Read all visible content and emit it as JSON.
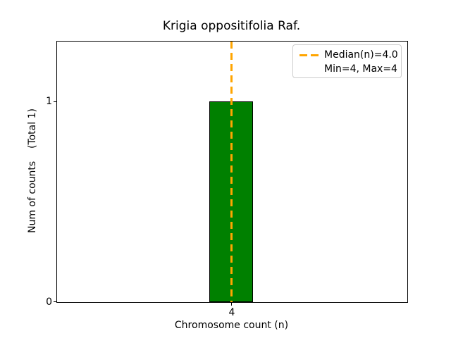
{
  "chart_data": {
    "type": "bar",
    "title": "Krigia oppositifolia Raf.",
    "xlabel": "Chromosome count (n)",
    "ylabel": "Num of counts    (Total 1)",
    "categories": [
      "4"
    ],
    "x": [
      4
    ],
    "values": [
      1
    ],
    "total_counts": 1,
    "ylim": [
      0,
      1.3
    ],
    "ytick_labels": [
      "0",
      "1"
    ],
    "xtick_labels": [
      "4"
    ],
    "grid": "off",
    "bar_color": "#008000",
    "bar_edge_color": "#000000",
    "median_line": {
      "value": 4.0,
      "color": "#FFA500",
      "style": "dashed",
      "orientation": "vertical"
    },
    "legend": {
      "position": "upper right",
      "entries": [
        {
          "label": "Median(n)=4.0",
          "handle": "orange-dashed-line"
        },
        {
          "label": "Min=4, Max=4",
          "handle": "none"
        }
      ]
    }
  }
}
